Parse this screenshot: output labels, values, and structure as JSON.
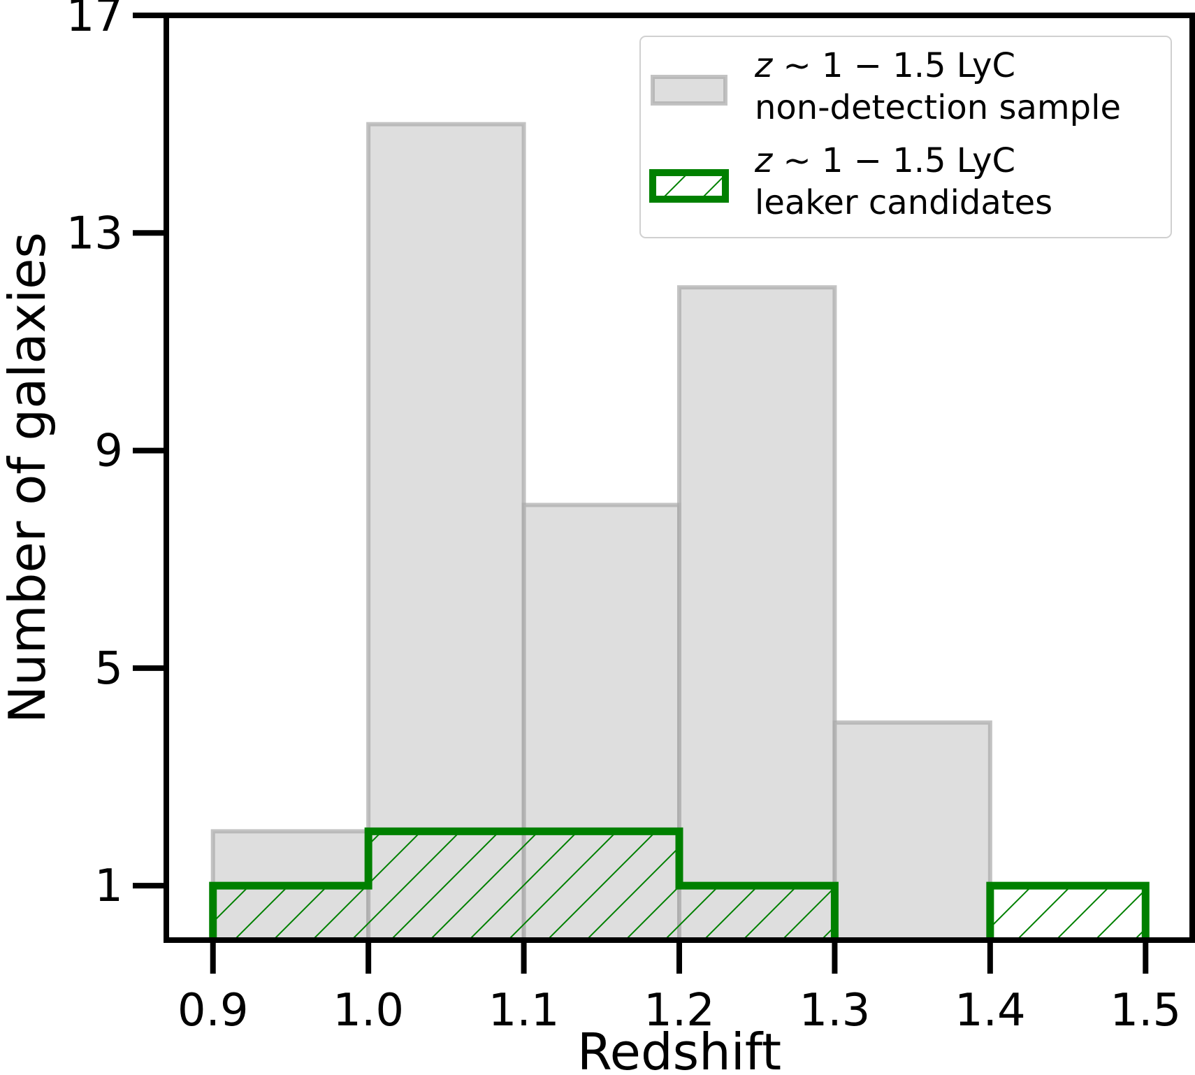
{
  "chart_data": {
    "type": "bar",
    "xlabel": "Redshift",
    "ylabel": "Number of galaxies",
    "xlim": [
      0.87,
      1.53
    ],
    "ylim": [
      0,
      17
    ],
    "xticks": [
      0.9,
      1.0,
      1.1,
      1.2,
      1.3,
      1.4,
      1.5
    ],
    "xtick_labels": [
      "0.9",
      "1.0",
      "1.1",
      "1.2",
      "1.3",
      "1.4",
      "1.5"
    ],
    "yticks": [
      1,
      5,
      9,
      13,
      17
    ],
    "ytick_labels": [
      "1",
      "5",
      "9",
      "13",
      "17"
    ],
    "bin_edges": [
      0.9,
      1.0,
      1.1,
      1.2,
      1.3,
      1.4,
      1.5
    ],
    "series": [
      {
        "name": "z ~ 1 − 1.5 LyC non-detection sample",
        "values": [
          2,
          15,
          8,
          12,
          4,
          0
        ],
        "color": "#d3d3d3",
        "edgecolor": "#a9a9a9",
        "style": "filled"
      },
      {
        "name": "z ~ 1 − 1.5 LyC leaker candidates",
        "values": [
          1,
          2,
          2,
          1,
          0,
          1
        ],
        "color": "#008000",
        "style": "step-hatched"
      }
    ],
    "legend": {
      "position": "upper-right",
      "entries": [
        {
          "line1_prefix": "z",
          "line1_rest": " ∼ 1 − 1.5 LyC",
          "line2": "non-detection sample"
        },
        {
          "line1_prefix": "z",
          "line1_rest": " ∼ 1 − 1.5 LyC",
          "line2": "leaker candidates"
        }
      ]
    },
    "grid": false
  }
}
